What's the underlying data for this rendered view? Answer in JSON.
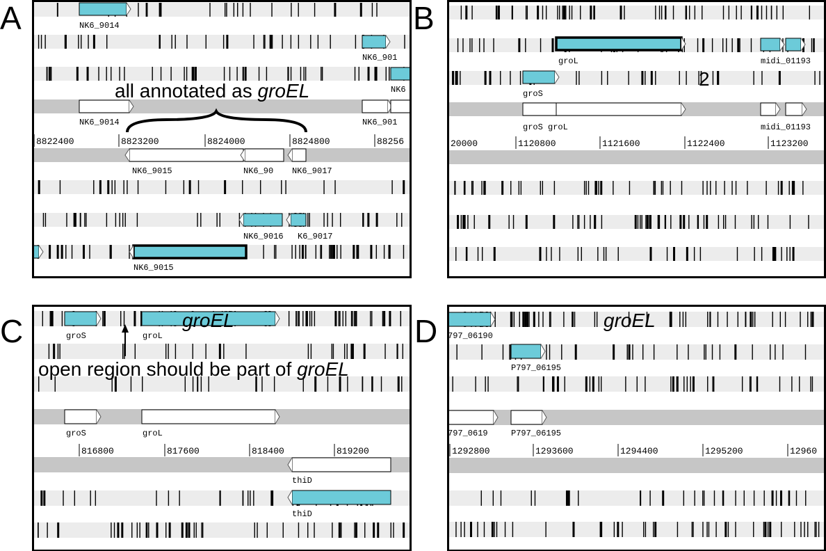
{
  "panels": [
    {
      "letter": "A",
      "annotation": {
        "text": "all annotated as ",
        "italic": "groEL"
      },
      "coordinates": [
        "8822400",
        "8823200",
        "8824000",
        "8824800",
        "88256"
      ],
      "gene_labels": [
        "NK6_9014",
        "NK6_901",
        "NK6",
        "NK6_9014",
        "NK6_901",
        "NK6_9015",
        "NK6_90",
        "NK6_9017",
        "NK6_9016",
        "K6_9017",
        "NK6_9015"
      ]
    },
    {
      "letter": "B",
      "annotation": {
        "text": "2"
      },
      "coordinates": [
        "20000",
        "1120800",
        "1121600",
        "1122400",
        "1123200"
      ],
      "gene_labels": [
        "groL",
        "midi_01193",
        "groS",
        "groS groL",
        "midi_01193"
      ]
    },
    {
      "letter": "C",
      "annotation": {
        "text": "open region should be part of ",
        "italic": "groEL"
      },
      "gene_title": "groEL",
      "coordinates": [
        "816800",
        "817600",
        "818400",
        "819200"
      ],
      "gene_labels": [
        "groS",
        "groL",
        "groS",
        "groL",
        "thiD",
        "thiD"
      ]
    },
    {
      "letter": "D",
      "gene_title": "groEL",
      "coordinates": [
        "1292800",
        "1293600",
        "1294400",
        "1295200",
        "12960"
      ],
      "gene_labels": [
        "797_06190",
        "P797_06195",
        "797_0619",
        "P797_06195"
      ]
    }
  ]
}
